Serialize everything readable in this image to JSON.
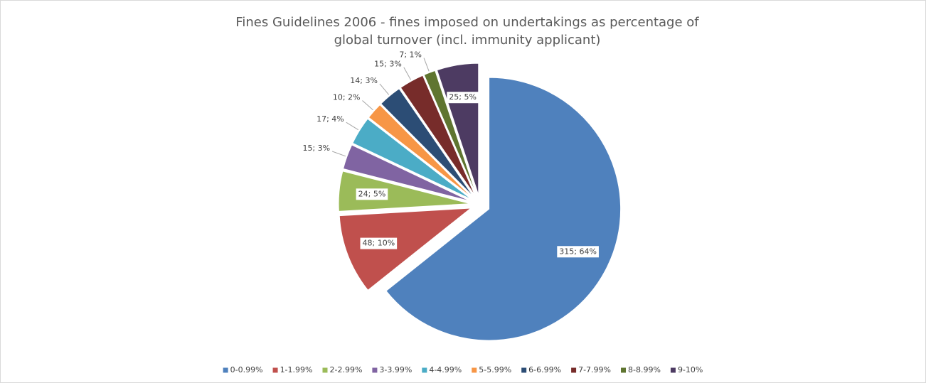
{
  "chart_data": {
    "type": "pie",
    "title": "Fines Guidelines 2006 - fines imposed on undertakings as percentage of global turnover (incl. immunity applicant)",
    "categories": [
      "0-0.99%",
      "1-1.99%",
      "2-2.99%",
      "3-3.99%",
      "4-4.99%",
      "5-5.99%",
      "6-6.99%",
      "7-7.99%",
      "8-8.99%",
      "9-10%"
    ],
    "values": [
      315,
      48,
      24,
      15,
      17,
      10,
      14,
      15,
      7,
      25
    ],
    "value_labels": [
      "315; 64%",
      "48; 10%",
      "24; 5%",
      "15; 3%",
      "17; 4%",
      "10; 2%",
      "14; 3%",
      "15; 3%",
      "7; 1%",
      "25; 5%"
    ],
    "colors": [
      "#4f81bd",
      "#c0504d",
      "#9bbb59",
      "#8064a2",
      "#4bacc6",
      "#f79646",
      "#2c4d75",
      "#772c2a",
      "#5f7530",
      "#4d3b62"
    ],
    "legend": "bottom"
  }
}
